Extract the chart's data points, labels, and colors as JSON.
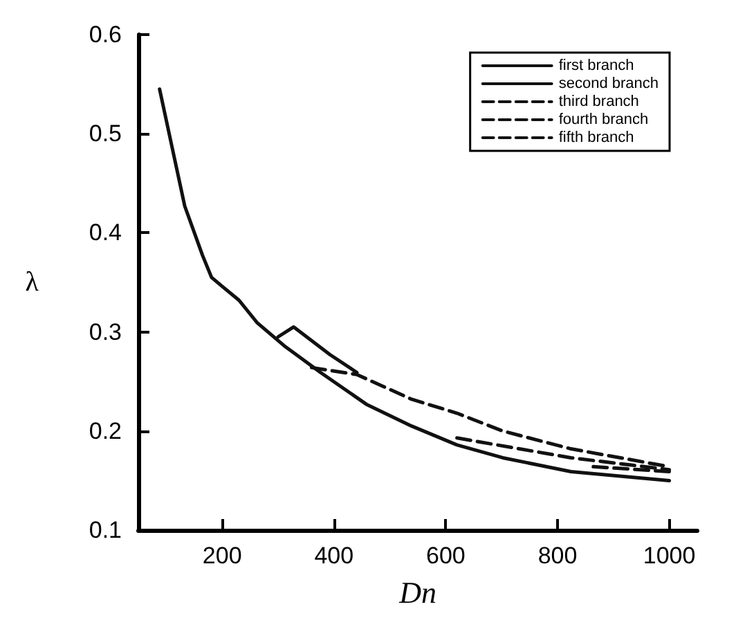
{
  "chart_data": {
    "type": "line",
    "xlabel": "Dn",
    "ylabel": "λ",
    "xlim": [
      50,
      1050
    ],
    "ylim": [
      0.1,
      0.6
    ],
    "xticks": [
      200,
      400,
      600,
      800,
      1000
    ],
    "yticks": [
      0.1,
      0.2,
      0.3,
      0.4,
      0.5,
      0.6
    ],
    "grid": false,
    "legend": "top right",
    "marker": "none",
    "series": [
      {
        "name": "first branch",
        "color": "#111111",
        "line_style": "solid",
        "x": [
          88,
          133,
          165,
          181,
          202,
          230,
          263,
          311,
          376,
          458,
          539,
          620,
          702,
          824,
          1000
        ],
        "values": [
          0.545,
          0.427,
          0.377,
          0.355,
          0.345,
          0.332,
          0.309,
          0.286,
          0.259,
          0.227,
          0.205,
          0.186,
          0.173,
          0.159,
          0.15
        ]
      },
      {
        "name": "second branch",
        "color": "#111111",
        "line_style": "solid",
        "x": [
          300,
          328,
          393,
          441
        ],
        "values": [
          0.295,
          0.305,
          0.277,
          0.259
        ]
      },
      {
        "name": "third branch",
        "color": "#111111",
        "line_style": "dashed",
        "x": [
          360,
          441,
          539,
          620,
          702,
          824,
          1000
        ],
        "values": [
          0.264,
          0.257,
          0.232,
          0.218,
          0.2,
          0.182,
          0.164
        ]
      },
      {
        "name": "fourth branch",
        "color": "#111111",
        "line_style": "dashed",
        "x": [
          620,
          824,
          1000
        ],
        "values": [
          0.193,
          0.173,
          0.161
        ]
      },
      {
        "name": "fifth branch",
        "color": "#111111",
        "line_style": "dashed",
        "x": [
          864,
          1000
        ],
        "values": [
          0.164,
          0.159
        ]
      }
    ]
  }
}
